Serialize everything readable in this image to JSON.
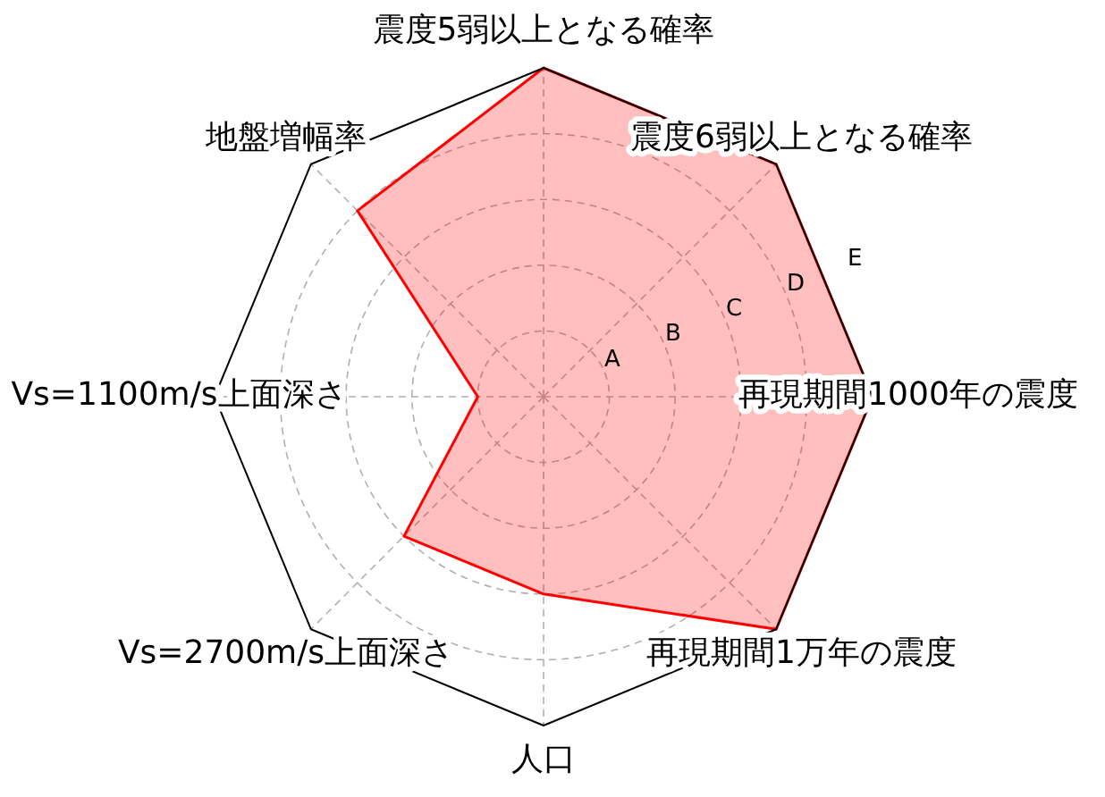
{
  "chart_data": {
    "type": "radar",
    "categories": [
      "震度5弱以上となる確率",
      "震度6弱以上となる確率",
      "再現期間1000年の震度",
      "再現期間1万年の震度",
      "人口",
      "Vs=2700m/s上面深さ",
      "Vs=1100m/s上面深さ",
      "地盤増幅率"
    ],
    "series": [
      {
        "color": "#ff0000",
        "values": [
          5,
          5,
          5,
          5,
          3,
          3,
          1,
          4
        ]
      }
    ],
    "ylim": [
      0,
      5
    ],
    "yticks": [
      {
        "value": 1,
        "label": "A"
      },
      {
        "value": 2,
        "label": "B"
      },
      {
        "value": 3,
        "label": "C"
      },
      {
        "value": 4,
        "label": "D"
      },
      {
        "value": 5,
        "label": "E"
      }
    ],
    "grid": true
  }
}
